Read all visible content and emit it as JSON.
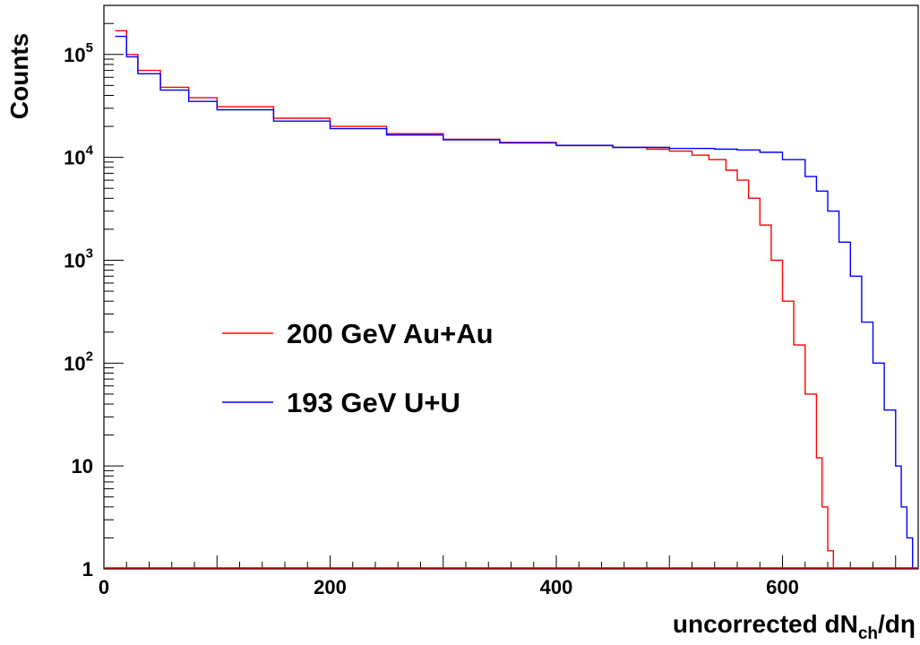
{
  "chart_data": {
    "type": "line",
    "title": "",
    "xlabel": "uncorrected dNch/dη",
    "xlabel_parts": {
      "main": "uncorrected dN",
      "sub": "ch",
      "tail": "/dη"
    },
    "ylabel": "Counts",
    "xlim": [
      0,
      720
    ],
    "ylim": [
      1,
      300000
    ],
    "yscale": "log",
    "grid": false,
    "legend_position": "center-left",
    "x_ticks": [
      0,
      200,
      400,
      600
    ],
    "y_ticks": [
      {
        "value": 1,
        "base": "1",
        "exp": ""
      },
      {
        "value": 10,
        "base": "10",
        "exp": ""
      },
      {
        "value": 100,
        "base": "10",
        "exp": "2"
      },
      {
        "value": 1000,
        "base": "10",
        "exp": "3"
      },
      {
        "value": 10000,
        "base": "10",
        "exp": "4"
      },
      {
        "value": 100000,
        "base": "10",
        "exp": "5"
      }
    ],
    "series": [
      {
        "name": "200 GeV Au+Au",
        "color": "#ff0000",
        "x": [
          10,
          20,
          30,
          50,
          75,
          100,
          150,
          200,
          250,
          300,
          350,
          400,
          450,
          480,
          500,
          520,
          535,
          550,
          560,
          570,
          580,
          590,
          600,
          610,
          620,
          630,
          635,
          640,
          645
        ],
        "y": [
          170000,
          100000,
          70000,
          48000,
          38000,
          31000,
          24000,
          20000,
          17000,
          15000,
          14000,
          13000,
          12500,
          12000,
          11500,
          10500,
          9500,
          7500,
          6000,
          4000,
          2200,
          1000,
          400,
          150,
          50,
          12,
          4,
          1.5,
          1
        ]
      },
      {
        "name": "193 GeV U+U",
        "color": "#0000ff",
        "x": [
          10,
          20,
          30,
          50,
          75,
          100,
          150,
          200,
          250,
          300,
          350,
          400,
          450,
          500,
          540,
          560,
          580,
          600,
          620,
          630,
          640,
          650,
          660,
          670,
          680,
          690,
          700,
          705,
          710,
          715
        ],
        "y": [
          150000,
          95000,
          65000,
          45000,
          35000,
          29000,
          22500,
          19000,
          16500,
          14800,
          13800,
          13100,
          12500,
          12200,
          12000,
          11800,
          11200,
          9500,
          6500,
          4700,
          3000,
          1500,
          700,
          250,
          100,
          35,
          10,
          4,
          2,
          1
        ]
      }
    ]
  }
}
